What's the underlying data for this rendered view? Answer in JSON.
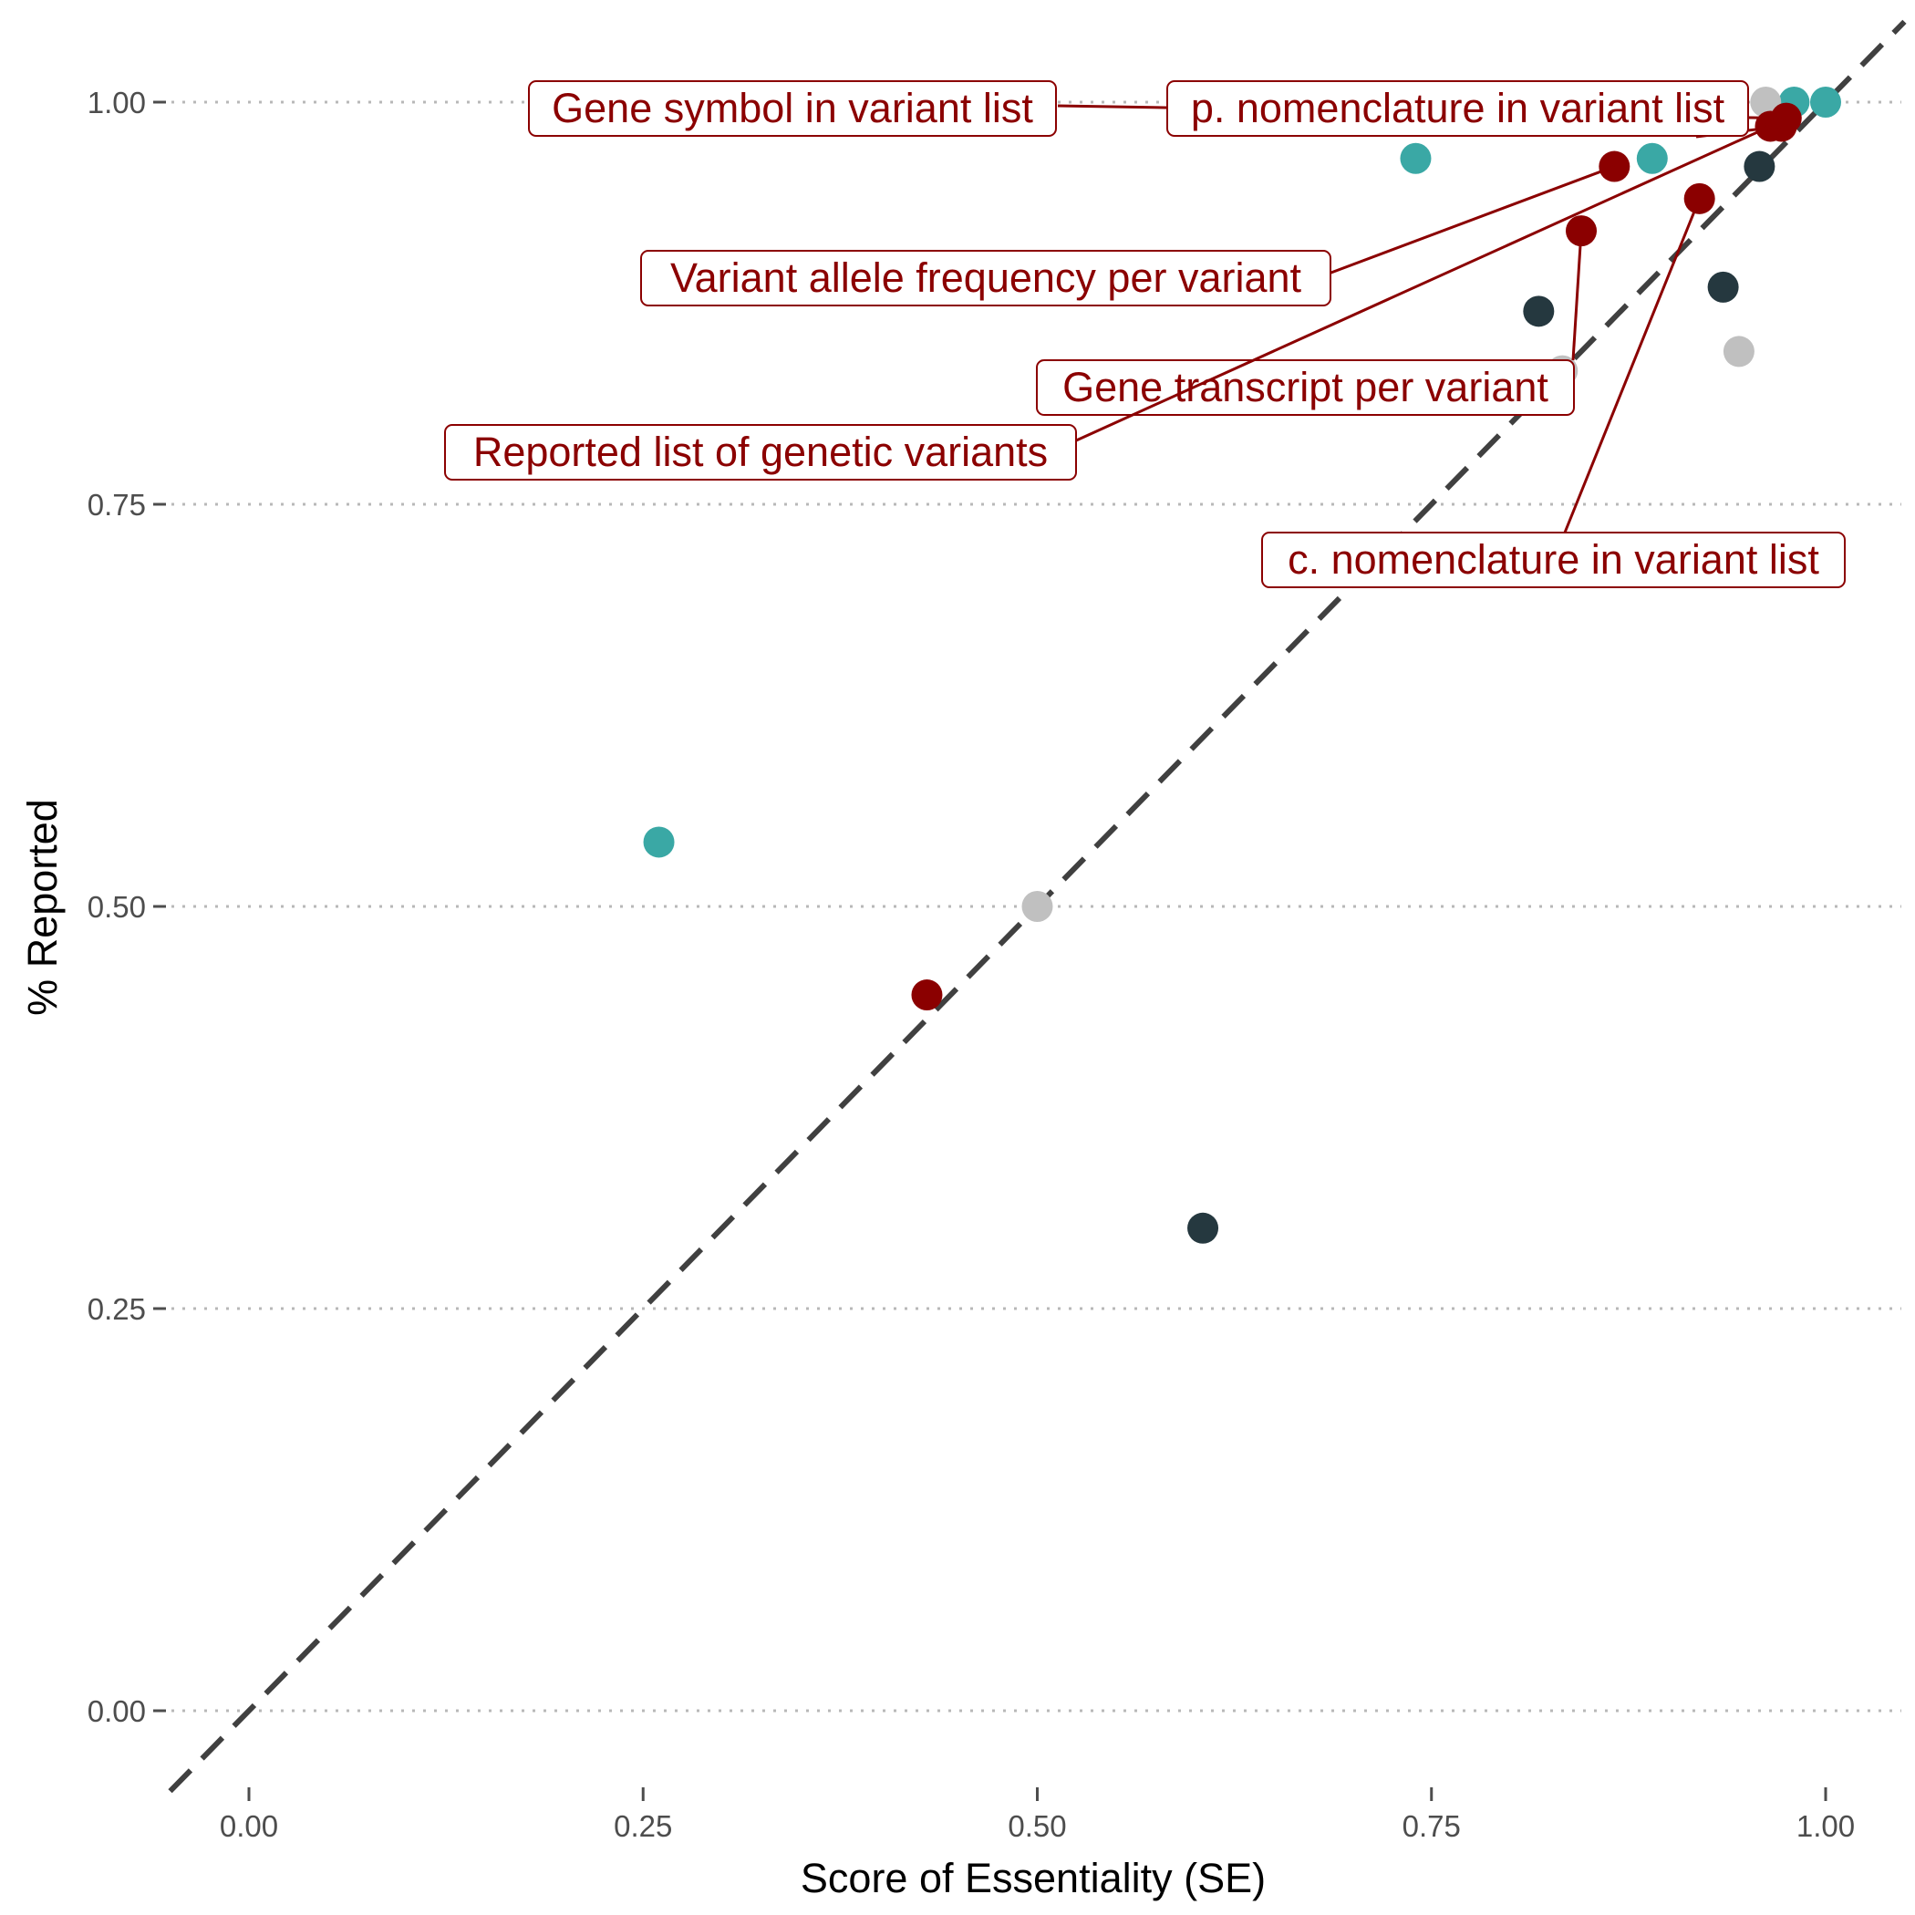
{
  "chart_data": {
    "type": "scatter",
    "title": "",
    "xlabel": "Score of Essentiality (SE)",
    "ylabel": "% Reported",
    "xlim": [
      -0.05,
      1.05
    ],
    "ylim": [
      -0.05,
      1.05
    ],
    "x_ticks": [
      0,
      0.25,
      0.5,
      0.75,
      1
    ],
    "x_tick_labels": [
      "0.00",
      "0.25",
      "0.50",
      "0.75",
      "1.00"
    ],
    "y_ticks": [
      0,
      0.25,
      0.5,
      0.75,
      1
    ],
    "y_tick_labels": [
      "0.00",
      "0.25",
      "0.50",
      "0.75",
      "1.00"
    ],
    "grid": "horizontal dotted",
    "reference_line": {
      "style": "dashed",
      "slope": 1,
      "intercept": 0,
      "color": "#404040"
    },
    "colors": {
      "teal": "#3aa8a5",
      "darkred": "#8b0000",
      "slate": "#25383f",
      "gray": "#c0c0c0"
    },
    "points": [
      {
        "x": 0.26,
        "y": 0.54,
        "color": "teal"
      },
      {
        "x": 0.74,
        "y": 0.965,
        "color": "teal"
      },
      {
        "x": 0.89,
        "y": 0.965,
        "color": "teal"
      },
      {
        "x": 0.98,
        "y": 1.0,
        "color": "teal"
      },
      {
        "x": 1.0,
        "y": 1.0,
        "color": "teal"
      },
      {
        "x": 0.5,
        "y": 0.5,
        "color": "gray"
      },
      {
        "x": 0.833,
        "y": 0.833,
        "color": "gray"
      },
      {
        "x": 0.945,
        "y": 0.845,
        "color": "gray"
      },
      {
        "x": 0.962,
        "y": 1.0,
        "color": "gray"
      },
      {
        "x": 0.605,
        "y": 0.3,
        "color": "slate"
      },
      {
        "x": 0.818,
        "y": 0.87,
        "color": "slate"
      },
      {
        "x": 0.935,
        "y": 0.885,
        "color": "slate"
      },
      {
        "x": 0.958,
        "y": 0.96,
        "color": "slate"
      },
      {
        "x": 0.43,
        "y": 0.445,
        "color": "darkred"
      },
      {
        "x": 0.866,
        "y": 0.96,
        "color": "darkred",
        "label": "Variant allele frequency per variant"
      },
      {
        "x": 0.845,
        "y": 0.92,
        "color": "darkred",
        "label": "Gene transcript per variant"
      },
      {
        "x": 0.92,
        "y": 0.94,
        "color": "darkred",
        "label": "c. nomenclature in variant list"
      },
      {
        "x": 0.965,
        "y": 0.985,
        "color": "darkred",
        "label": "Reported list of genetic variants"
      },
      {
        "x": 0.972,
        "y": 0.985,
        "color": "darkred",
        "label": "p. nomenclature in variant list"
      },
      {
        "x": 0.975,
        "y": 0.99,
        "color": "darkred",
        "label": "Gene symbol in variant list"
      }
    ],
    "annotations": [
      "Gene symbol in variant list",
      "p. nomenclature in variant list",
      "Variant allele frequency per variant",
      "Gene transcript per variant",
      "Reported list of genetic variants",
      "c. nomenclature in variant list"
    ]
  }
}
